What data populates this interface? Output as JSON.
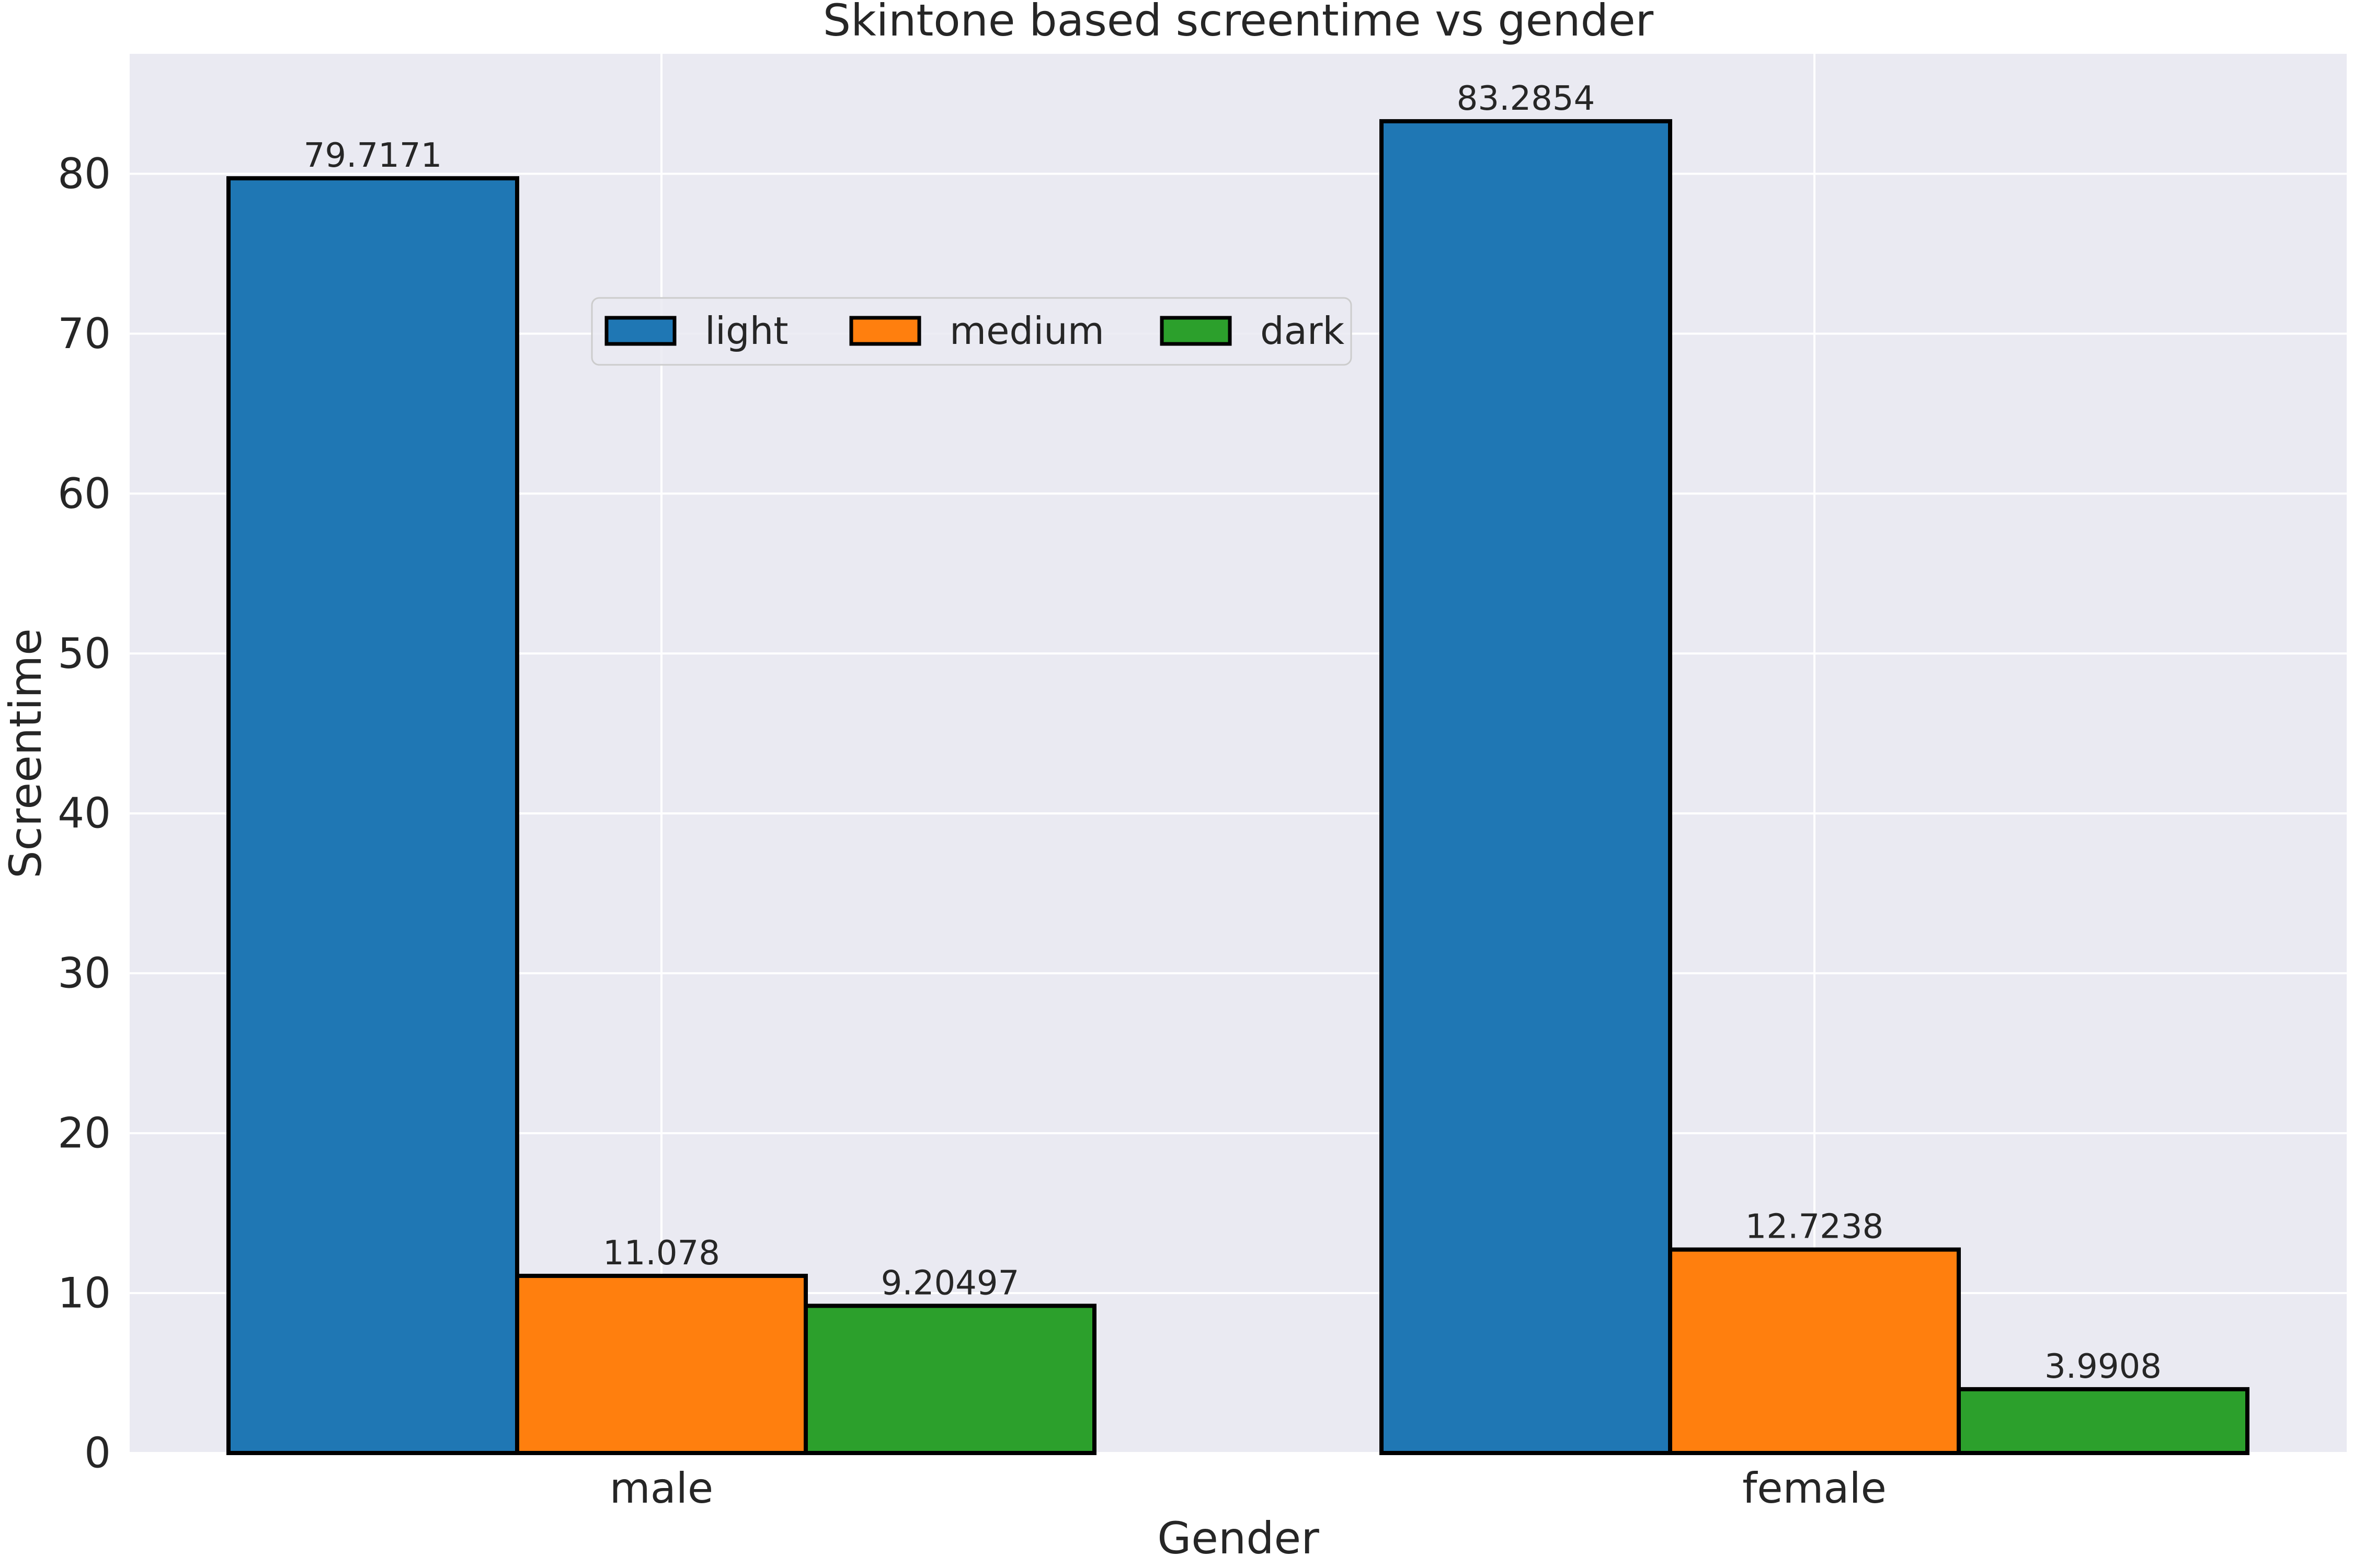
{
  "chart_data": {
    "type": "bar",
    "title": "Skintone based screentime vs gender",
    "xlabel": "Gender",
    "ylabel": "Screentime",
    "categories": [
      "male",
      "female"
    ],
    "series": [
      {
        "name": "light",
        "color": "#1f77b4",
        "values": [
          79.7171,
          83.2854
        ],
        "labels": [
          "79.7171",
          "83.2854"
        ]
      },
      {
        "name": "medium",
        "color": "#ff7f0e",
        "values": [
          11.078,
          12.7238
        ],
        "labels": [
          "11.078",
          "12.7238"
        ]
      },
      {
        "name": "dark",
        "color": "#2ca02c",
        "values": [
          9.20497,
          3.9908
        ],
        "labels": [
          "9.20497",
          "3.9908"
        ]
      }
    ],
    "ylim": [
      0,
      87.5
    ],
    "yticks": [
      0,
      10,
      20,
      30,
      40,
      50,
      60,
      70,
      80
    ],
    "grid": true,
    "legend_position": "upper center, horizontal",
    "colors": {
      "background": "#eaeaf2",
      "grid": "#ffffff",
      "bar_edge": "#000000"
    }
  }
}
